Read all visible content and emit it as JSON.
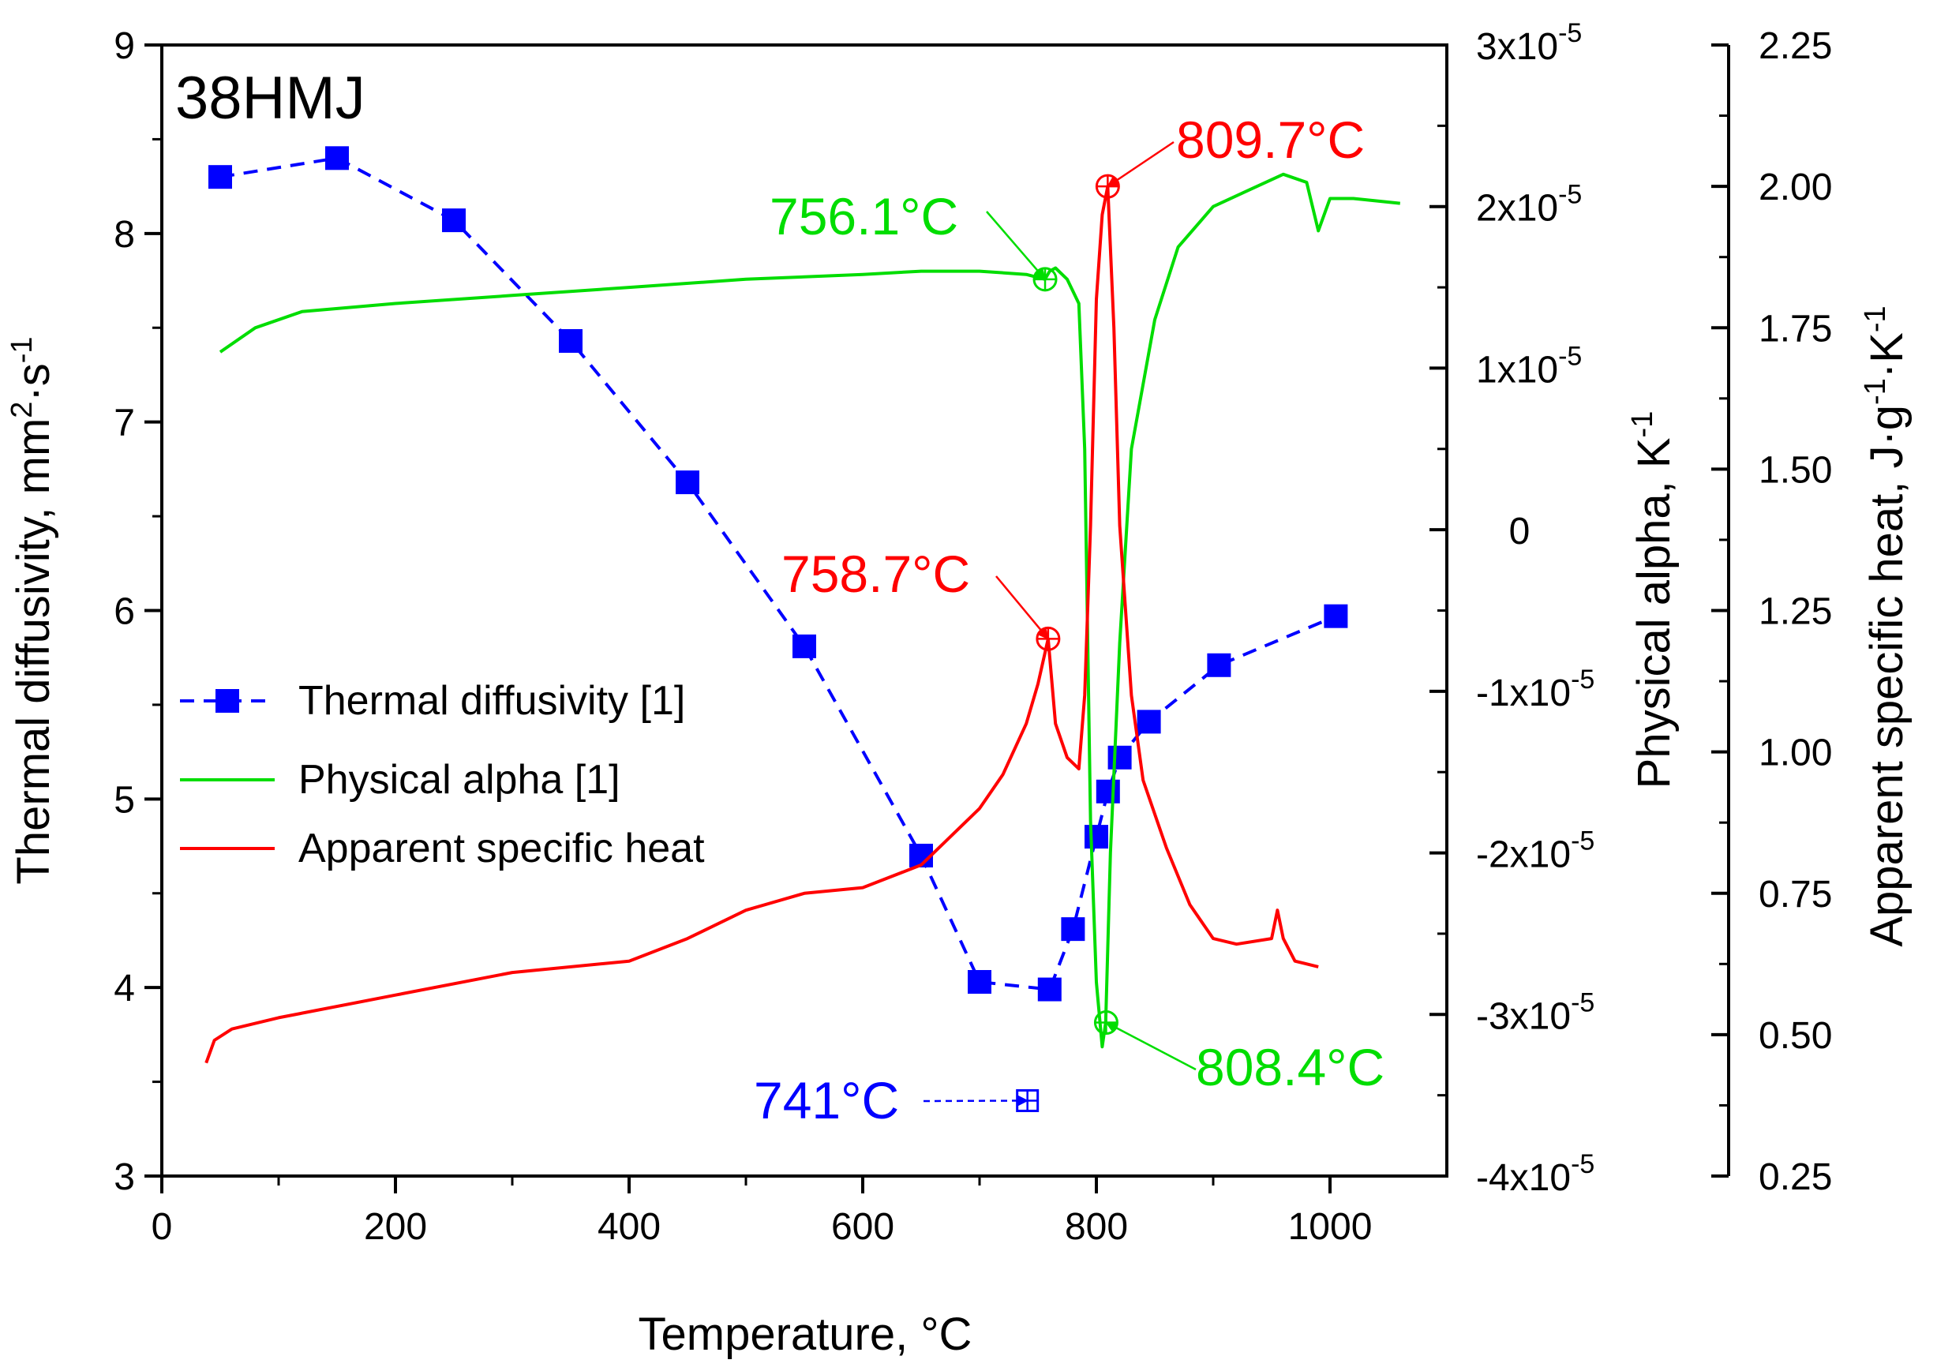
{
  "chart_data": {
    "type": "line",
    "title": "38HMJ",
    "xlabel": "Temperature, °C",
    "xlim": [
      0,
      1100
    ],
    "x_ticks": [
      0,
      200,
      400,
      600,
      800,
      1000
    ],
    "y_axes": [
      {
        "id": "diffusivity",
        "label_main": "Thermal diffusivity, mm",
        "label_sup1": "2",
        "label_mid": "·s",
        "label_sup2": "-1",
        "lim": [
          3,
          9
        ],
        "ticks": [
          {
            "v": 3,
            "t": "3"
          },
          {
            "v": 4,
            "t": "4"
          },
          {
            "v": 5,
            "t": "5"
          },
          {
            "v": 6,
            "t": "6"
          },
          {
            "v": 7,
            "t": "7"
          },
          {
            "v": 8,
            "t": "8"
          },
          {
            "v": 9,
            "t": "9"
          }
        ]
      },
      {
        "id": "alpha",
        "label_main": "Physical alpha, K",
        "label_sup1": "-1",
        "lim": [
          -4e-05,
          3e-05
        ],
        "ticks": [
          {
            "v": 3e-05,
            "m": "3x10",
            "e": "-5"
          },
          {
            "v": 2e-05,
            "m": "2x10",
            "e": "-5"
          },
          {
            "v": 1e-05,
            "m": "1x10",
            "e": "-5"
          },
          {
            "v": 0,
            "m": "0",
            "e": ""
          },
          {
            "v": -1e-05,
            "m": "-1x10",
            "e": "-5"
          },
          {
            "v": -2e-05,
            "m": "-2x10",
            "e": "-5"
          },
          {
            "v": -3e-05,
            "m": "-3x10",
            "e": "-5"
          },
          {
            "v": -4e-05,
            "m": "-4x10",
            "e": "-5"
          }
        ]
      },
      {
        "id": "cp",
        "label_main": "Apparent specific heat, J·g",
        "label_sup1": "-1",
        "label_mid": "·K",
        "label_sup2": "-1",
        "lim": [
          0.25,
          2.25
        ],
        "ticks": [
          {
            "v": 0.25,
            "t": "0.25"
          },
          {
            "v": 0.5,
            "t": "0.50"
          },
          {
            "v": 0.75,
            "t": "0.75"
          },
          {
            "v": 1.0,
            "t": "1.00"
          },
          {
            "v": 1.25,
            "t": "1.25"
          },
          {
            "v": 1.5,
            "t": "1.50"
          },
          {
            "v": 1.75,
            "t": "1.75"
          },
          {
            "v": 2.0,
            "t": "2.00"
          },
          {
            "v": 2.25,
            "t": "2.25"
          }
        ]
      }
    ],
    "series": [
      {
        "name": "Thermal diffusivity [1]",
        "axis": "diffusivity",
        "color": "#0000ff",
        "style": "dashed-square",
        "x": [
          50,
          150,
          250,
          350,
          450,
          550,
          650,
          700,
          760,
          780,
          800,
          810,
          820,
          845,
          905,
          1005
        ],
        "y": [
          8.3,
          8.4,
          8.07,
          7.43,
          6.68,
          5.81,
          4.7,
          4.03,
          3.99,
          4.31,
          4.8,
          5.04,
          5.22,
          5.41,
          5.71,
          5.97
        ]
      },
      {
        "name": "Physical alpha [1]",
        "axis": "alpha",
        "color": "#00dd00",
        "style": "line",
        "x": [
          50,
          80,
          120,
          200,
          300,
          400,
          500,
          600,
          650,
          700,
          740,
          756,
          760,
          765,
          775,
          785,
          790,
          795,
          800,
          805,
          808,
          812,
          820,
          830,
          850,
          870,
          900,
          930,
          960,
          980,
          990,
          1000,
          1020,
          1060
        ],
        "y": [
          1.1e-05,
          1.25e-05,
          1.35e-05,
          1.4e-05,
          1.45e-05,
          1.5e-05,
          1.55e-05,
          1.58e-05,
          1.6e-05,
          1.6e-05,
          1.58e-05,
          1.55e-05,
          1.6e-05,
          1.62e-05,
          1.55e-05,
          1.4e-05,
          5e-06,
          -1.8e-05,
          -2.8e-05,
          -3.2e-05,
          -3.05e-05,
          -2e-05,
          -7e-06,
          5e-06,
          1.3e-05,
          1.75e-05,
          2e-05,
          2.1e-05,
          2.2e-05,
          2.15e-05,
          1.85e-05,
          2.05e-05,
          2.05e-05,
          2.02e-05
        ]
      },
      {
        "name": "Apparent specific heat",
        "axis": "cp",
        "color": "#ff0000",
        "style": "line",
        "x": [
          38,
          45,
          60,
          100,
          200,
          300,
          400,
          450,
          500,
          550,
          600,
          650,
          700,
          720,
          740,
          750,
          758.7,
          765,
          775,
          785,
          790,
          795,
          800,
          805,
          809.7,
          815,
          820,
          830,
          840,
          860,
          880,
          900,
          920,
          950,
          955,
          960,
          970,
          990
        ],
        "y": [
          0.45,
          0.49,
          0.51,
          0.53,
          0.57,
          0.61,
          0.63,
          0.67,
          0.72,
          0.75,
          0.76,
          0.8,
          0.9,
          0.96,
          1.05,
          1.12,
          1.2,
          1.05,
          0.99,
          0.97,
          1.1,
          1.4,
          1.8,
          1.95,
          2.0,
          1.75,
          1.4,
          1.1,
          0.95,
          0.83,
          0.73,
          0.67,
          0.66,
          0.67,
          0.72,
          0.67,
          0.63,
          0.62
        ]
      }
    ],
    "markers": [
      {
        "id": "min-diffusivity",
        "axis": "diffusivity",
        "x": 741,
        "y": 3.4,
        "color": "#0000ff",
        "shape": "square-cross"
      },
      {
        "id": "alpha-756",
        "axis": "alpha",
        "x": 756.1,
        "y": 1.55e-05,
        "color": "#00dd00",
        "shape": "circle-cross"
      },
      {
        "id": "alpha-808",
        "axis": "alpha",
        "x": 808.4,
        "y": -3.05e-05,
        "color": "#00dd00",
        "shape": "circle-cross"
      },
      {
        "id": "cp-758",
        "axis": "cp",
        "x": 758.7,
        "y": 1.2,
        "color": "#ff0000",
        "shape": "circle-cross"
      },
      {
        "id": "cp-809",
        "axis": "cp",
        "x": 809.7,
        "y": 2.0,
        "color": "#ff0000",
        "shape": "circle-cross"
      }
    ],
    "annotations": [
      {
        "id": "ann-741",
        "text": "741°C",
        "color": "#0000ff",
        "marker": "min-diffusivity",
        "dashed": true
      },
      {
        "id": "ann-756",
        "text": "756.1°C",
        "color": "#00dd00",
        "marker": "alpha-756",
        "dashed": false
      },
      {
        "id": "ann-758",
        "text": "758.7°C",
        "color": "#ff0000",
        "marker": "cp-758",
        "dashed": false
      },
      {
        "id": "ann-809",
        "text": "809.7°C",
        "color": "#ff0000",
        "marker": "cp-809",
        "dashed": false
      },
      {
        "id": "ann-808",
        "text": "808.4°C",
        "color": "#00dd00",
        "marker": "alpha-808",
        "dashed": false
      }
    ],
    "legend": {
      "position": "center-left",
      "entries": [
        "Thermal diffusivity [1]",
        "Physical alpha [1]",
        "Apparent specific heat"
      ]
    }
  }
}
